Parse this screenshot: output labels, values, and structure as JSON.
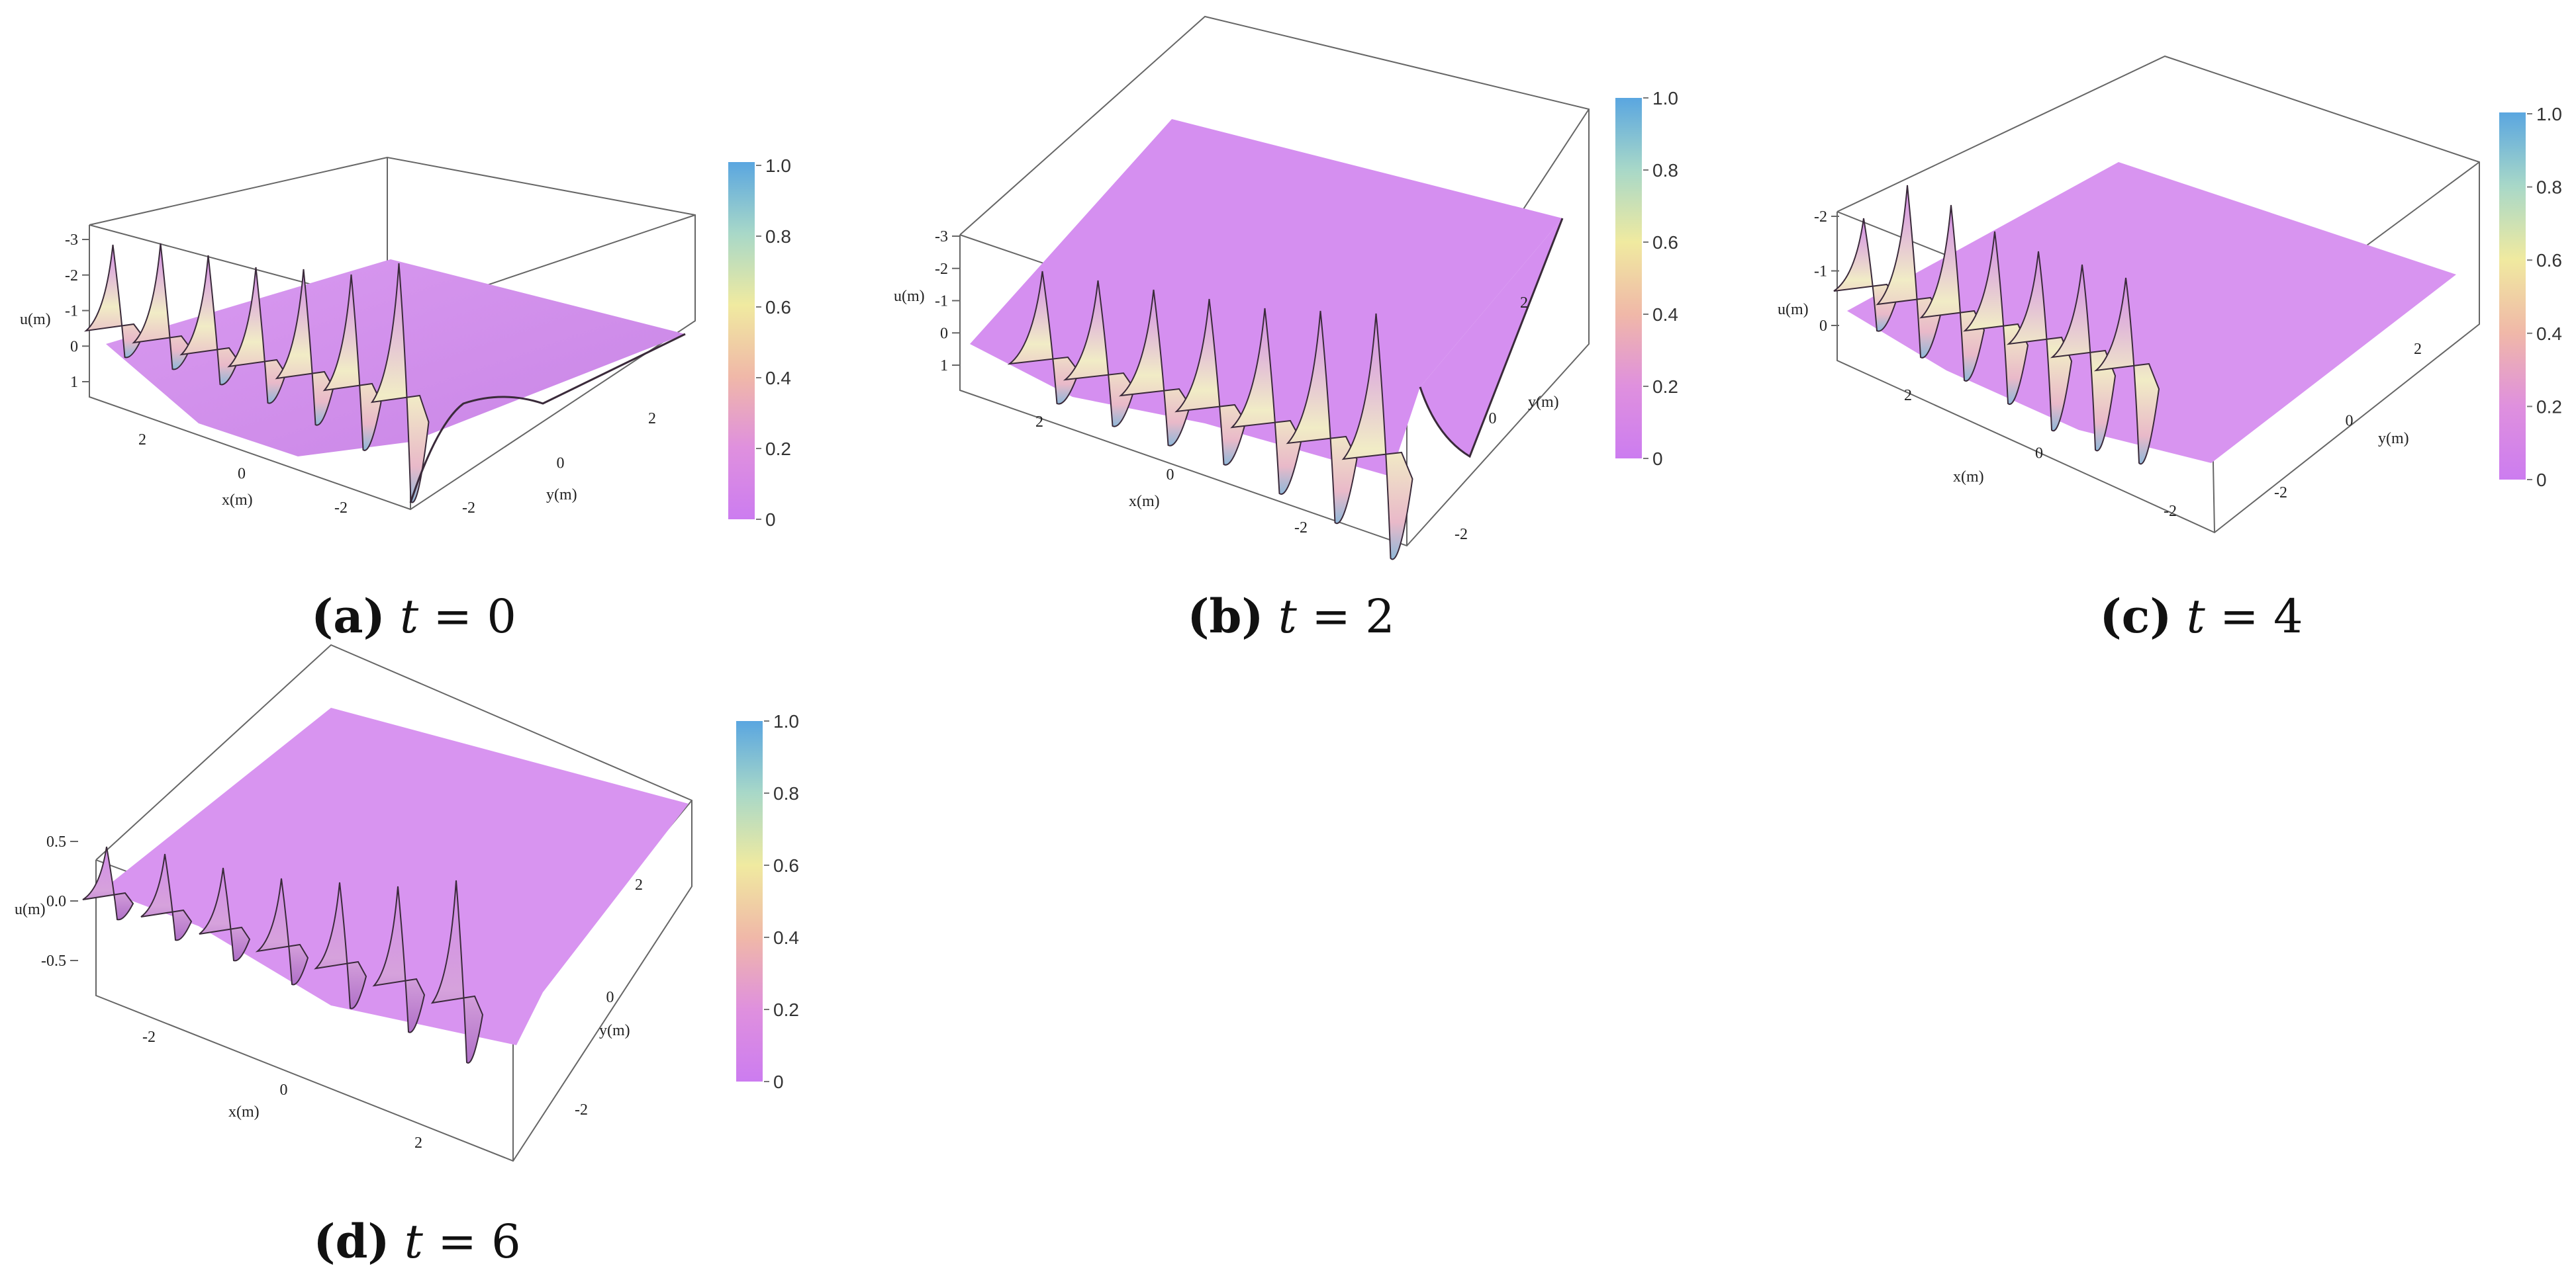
{
  "colors": {
    "surface_light": "#d992ef",
    "surface_dark": "#b76fd2",
    "ridge_light": "#f1ecc6",
    "ridge_mid": "#e9b9c9",
    "trough": "#5fa8dc",
    "box": "#555555"
  },
  "colorbar": {
    "ticks": [
      "1.0",
      "0.8",
      "0.6",
      "0.4",
      "0.2",
      "0"
    ],
    "gradient": [
      "#5aa6e0",
      "#a8d8c8",
      "#f0eaa0",
      "#f0b8a8",
      "#df90de",
      "#cc7cf0"
    ]
  },
  "chart_data": [
    {
      "type": "surface",
      "caption_label": "(a)",
      "caption_var": "t",
      "caption_eq": "= 0",
      "t": 0,
      "xlabel": "x(m)",
      "ylabel": "y(m)",
      "zlabel": "u(m)",
      "xticks": [
        "2",
        "0",
        "-2"
      ],
      "yticks": [
        "-2",
        "0",
        "2"
      ],
      "zticks": [
        "-3",
        "-2",
        "-1",
        "0",
        "1"
      ],
      "xlim": [
        -3,
        3
      ],
      "ylim": [
        -3,
        3
      ],
      "zlim": [
        -3,
        1
      ],
      "peaks": 7
    },
    {
      "type": "surface",
      "caption_label": "(b)",
      "caption_var": "t",
      "caption_eq": "= 2",
      "t": 2,
      "xlabel": "x(m)",
      "ylabel": "y(m)",
      "zlabel": "u(m)",
      "xticks": [
        "2",
        "0",
        "-2"
      ],
      "yticks": [
        "-2",
        "0",
        "2"
      ],
      "zticks": [
        "-3",
        "-2",
        "-1",
        "0",
        "1"
      ],
      "xlim": [
        -3,
        3
      ],
      "ylim": [
        -3,
        3
      ],
      "zlim": [
        -3,
        1
      ],
      "peaks": 7
    },
    {
      "type": "surface",
      "caption_label": "(c)",
      "caption_var": "t",
      "caption_eq": "= 4",
      "t": 4,
      "xlabel": "x(m)",
      "ylabel": "y(m)",
      "zlabel": "u(m)",
      "xticks": [
        "2",
        "0",
        "-2"
      ],
      "yticks": [
        "-2",
        "0",
        "2"
      ],
      "zticks": [
        "-2",
        "-1",
        "0"
      ],
      "xlim": [
        -3,
        3
      ],
      "ylim": [
        -3,
        3
      ],
      "zlim": [
        -2,
        0.5
      ],
      "peaks": 7
    },
    {
      "type": "surface",
      "caption_label": "(d)",
      "caption_var": "t",
      "caption_eq": "= 6",
      "t": 6,
      "xlabel": "x(m)",
      "ylabel": "y(m)",
      "zlabel": "u(m)",
      "xticks": [
        "-2",
        "0",
        "2"
      ],
      "yticks": [
        "-2",
        "0",
        "2"
      ],
      "zticks": [
        "0.5",
        "0.0",
        "-0.5"
      ],
      "xlim": [
        -3,
        3
      ],
      "ylim": [
        -3,
        3
      ],
      "zlim": [
        -1,
        0.5
      ],
      "peaks": 7
    }
  ]
}
